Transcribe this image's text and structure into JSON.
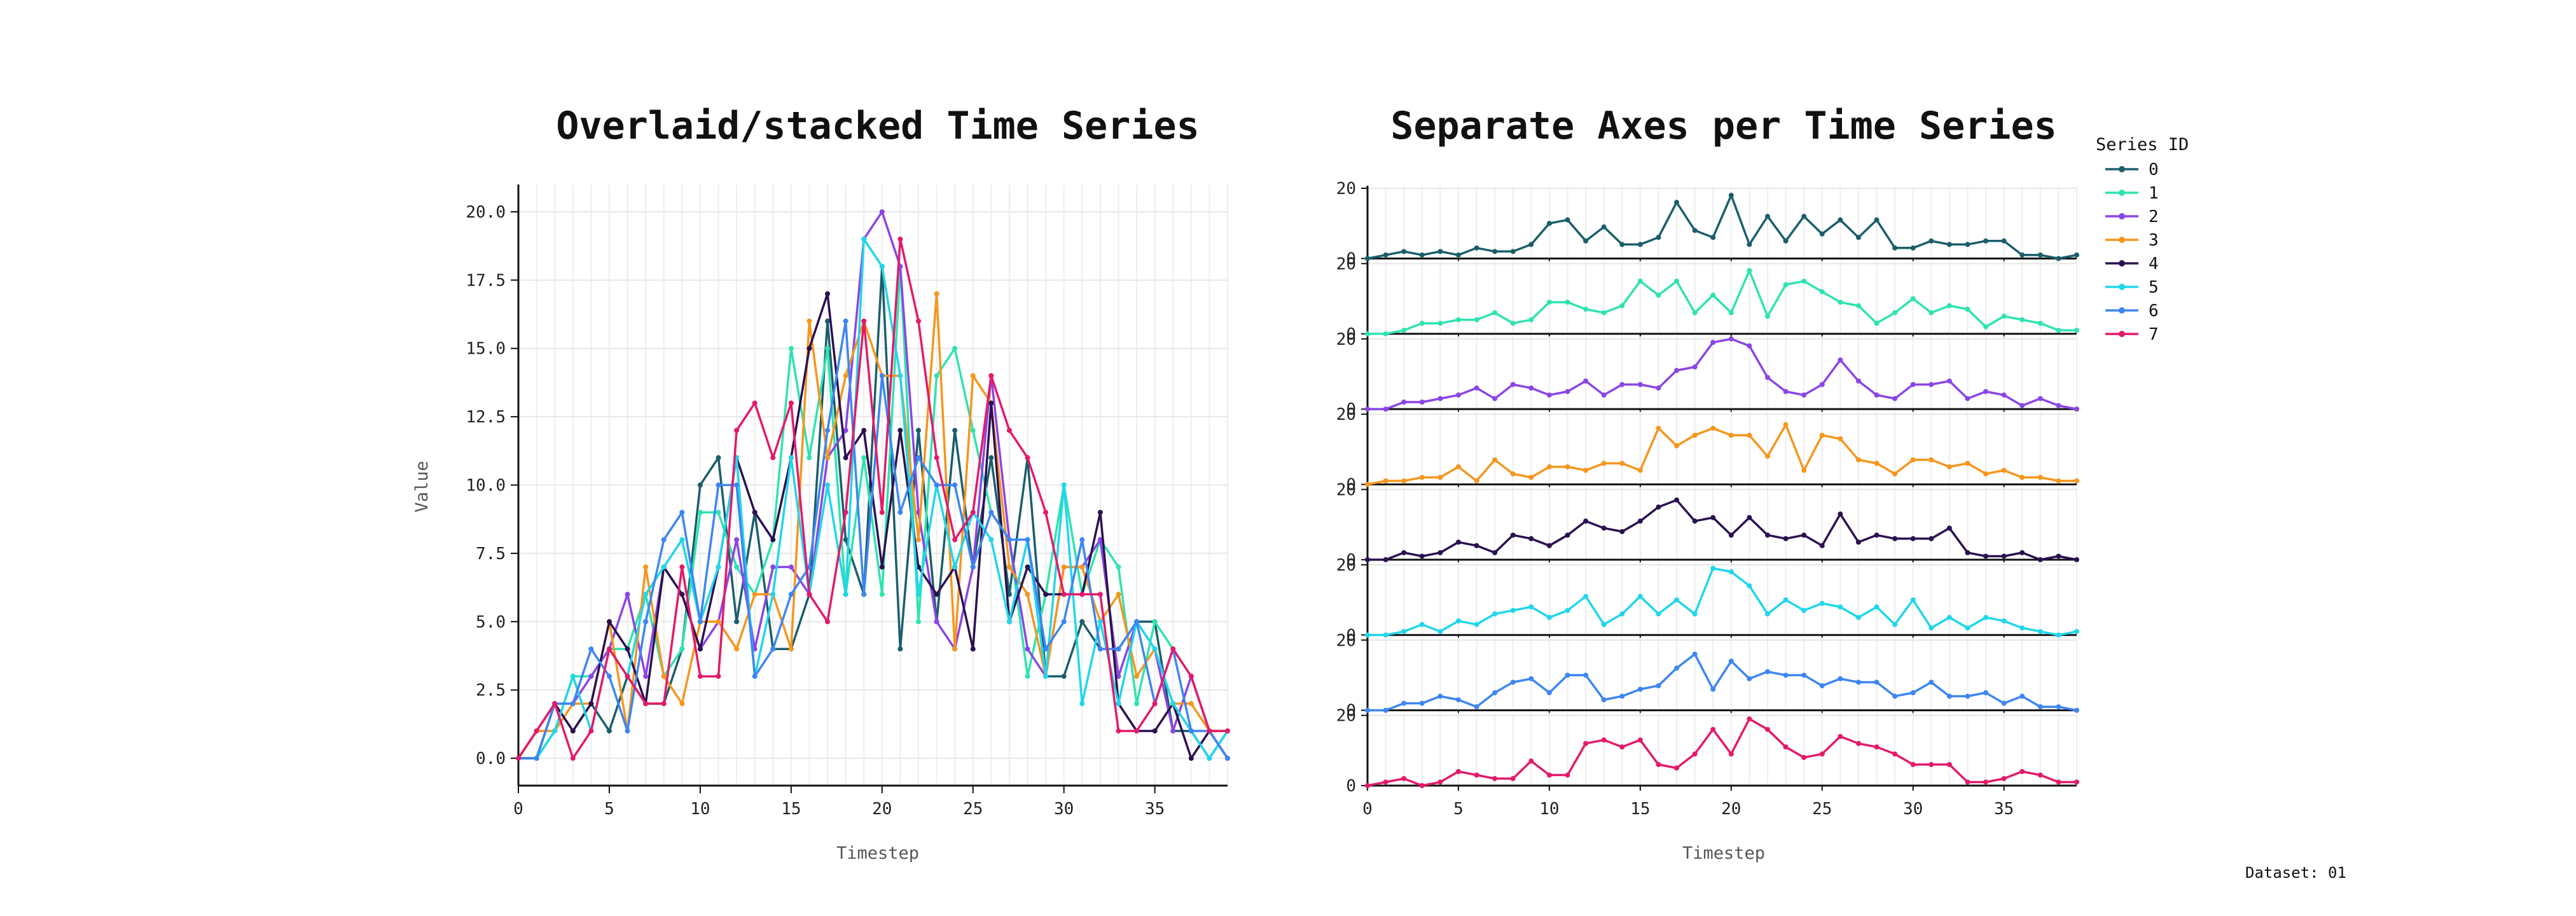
{
  "chart_data": [
    {
      "type": "line",
      "title": "Overlaid/stacked Time Series",
      "xlabel": "Timestep",
      "ylabel": "Value",
      "xlim": [
        0,
        39
      ],
      "ylim": [
        -1,
        21
      ],
      "x_ticks": [
        "0",
        "5",
        "10",
        "15",
        "20",
        "25",
        "30",
        "35"
      ],
      "y_ticks": [
        "0.0",
        "2.5",
        "5.0",
        "7.5",
        "10.0",
        "12.5",
        "15.0",
        "17.5",
        "20.0"
      ],
      "grid": true,
      "x": [
        0,
        1,
        2,
        3,
        4,
        5,
        6,
        7,
        8,
        9,
        10,
        11,
        12,
        13,
        14,
        15,
        16,
        17,
        18,
        19,
        20,
        21,
        22,
        23,
        24,
        25,
        26,
        27,
        28,
        29,
        30,
        31,
        32,
        33,
        34,
        35,
        36,
        37,
        38,
        39
      ],
      "series": [
        {
          "name": "0",
          "values": [
            0,
            1,
            2,
            1,
            2,
            1,
            3,
            2,
            2,
            4,
            10,
            11,
            5,
            9,
            4,
            4,
            6,
            16,
            8,
            6,
            18,
            4,
            12,
            5,
            12,
            7,
            11,
            6,
            11,
            3,
            3,
            5,
            4,
            4,
            5,
            5,
            1,
            1,
            0,
            1
          ]
        },
        {
          "name": "1",
          "values": [
            0,
            0,
            1,
            3,
            3,
            4,
            4,
            6,
            3,
            4,
            9,
            9,
            7,
            6,
            8,
            15,
            11,
            15,
            6,
            11,
            6,
            18,
            5,
            14,
            15,
            12,
            9,
            8,
            3,
            6,
            10,
            6,
            8,
            7,
            2,
            5,
            4,
            3,
            1,
            1
          ]
        },
        {
          "name": "2",
          "values": [
            0,
            0,
            2,
            2,
            3,
            4,
            6,
            3,
            7,
            6,
            4,
            5,
            8,
            4,
            7,
            7,
            6,
            11,
            12,
            19,
            20,
            18,
            9,
            5,
            4,
            7,
            14,
            8,
            4,
            3,
            7,
            7,
            8,
            3,
            5,
            4,
            1,
            3,
            1,
            0
          ]
        },
        {
          "name": "3",
          "values": [
            0,
            1,
            1,
            2,
            2,
            5,
            1,
            7,
            3,
            2,
            5,
            5,
            4,
            6,
            6,
            4,
            16,
            11,
            14,
            16,
            14,
            14,
            8,
            17,
            4,
            14,
            13,
            7,
            6,
            3,
            7,
            7,
            5,
            6,
            3,
            4,
            2,
            2,
            1,
            1
          ]
        },
        {
          "name": "4",
          "values": [
            0,
            0,
            2,
            1,
            2,
            5,
            4,
            2,
            7,
            6,
            4,
            7,
            11,
            9,
            8,
            11,
            15,
            17,
            11,
            12,
            7,
            12,
            7,
            6,
            7,
            4,
            13,
            5,
            7,
            6,
            6,
            6,
            9,
            2,
            1,
            1,
            2,
            0,
            1,
            0
          ]
        },
        {
          "name": "5",
          "values": [
            0,
            0,
            1,
            3,
            1,
            4,
            3,
            6,
            7,
            8,
            5,
            7,
            11,
            3,
            6,
            11,
            6,
            10,
            6,
            19,
            18,
            14,
            6,
            10,
            7,
            9,
            8,
            5,
            8,
            3,
            10,
            2,
            5,
            2,
            5,
            4,
            2,
            1,
            0,
            1
          ]
        },
        {
          "name": "6",
          "values": [
            0,
            0,
            2,
            2,
            4,
            3,
            1,
            5,
            8,
            9,
            5,
            10,
            10,
            3,
            4,
            6,
            7,
            12,
            16,
            6,
            14,
            9,
            11,
            10,
            10,
            7,
            9,
            8,
            8,
            4,
            5,
            8,
            4,
            4,
            5,
            2,
            4,
            1,
            1,
            0
          ]
        },
        {
          "name": "7",
          "values": [
            0,
            1,
            2,
            0,
            1,
            4,
            3,
            2,
            2,
            7,
            3,
            3,
            12,
            13,
            11,
            13,
            6,
            5,
            9,
            16,
            9,
            19,
            16,
            11,
            8,
            9,
            14,
            12,
            11,
            9,
            6,
            6,
            6,
            1,
            1,
            2,
            4,
            3,
            1,
            1
          ]
        }
      ]
    },
    {
      "type": "line",
      "title": "Separate Axes per Time Series",
      "xlabel": "Timestep",
      "xlim": [
        0,
        39
      ],
      "ylim": [
        0,
        20
      ],
      "x_ticks": [
        "0",
        "5",
        "10",
        "15",
        "20",
        "25",
        "30",
        "35"
      ],
      "y_ticks": [
        "0",
        "20"
      ],
      "grid": true,
      "layout": "small-multiples, one panel per series, shared x axis",
      "same_series_as": "chart 1"
    }
  ],
  "legend": {
    "title": "Series ID",
    "placement": "top-right",
    "items": [
      "0",
      "1",
      "2",
      "3",
      "4",
      "5",
      "6",
      "7"
    ]
  },
  "colors": {
    "0": "#1b5e6b",
    "1": "#2fe3b0",
    "2": "#8b45e6",
    "3": "#f5961e",
    "4": "#2b1150",
    "5": "#20d6ea",
    "6": "#3d86f2",
    "7": "#e31a6a"
  },
  "footer": "Dataset: 01"
}
